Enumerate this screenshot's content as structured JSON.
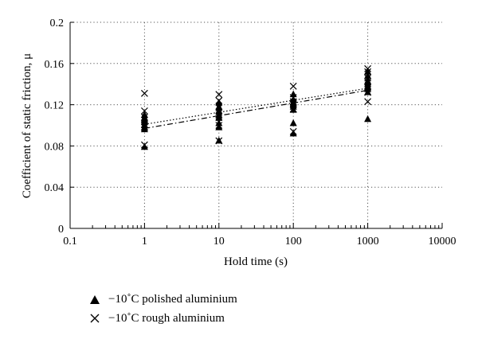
{
  "chart_data": {
    "type": "scatter",
    "xscale": "log",
    "xlabel": "Hold time (s)",
    "ylabel": "Coefficient of static friction, μ",
    "xlim": [
      0.1,
      10000
    ],
    "ylim": [
      0,
      0.2
    ],
    "xticks": [
      "0.1",
      "1",
      "10",
      "100",
      "1000",
      "10000"
    ],
    "yticks": [
      "0",
      "0.04",
      "0.08",
      "0.12",
      "0.16",
      "0.2"
    ],
    "grid": "dotted",
    "legend_position": "below",
    "series": [
      {
        "name": "−10°C polished aluminium",
        "marker": "triangle",
        "color": "#000000",
        "points": [
          [
            1,
            0.079
          ],
          [
            1,
            0.096
          ],
          [
            1,
            0.098
          ],
          [
            1,
            0.1
          ],
          [
            1,
            0.103
          ],
          [
            1,
            0.105
          ],
          [
            1,
            0.107
          ],
          [
            1,
            0.11
          ],
          [
            10,
            0.085
          ],
          [
            10,
            0.098
          ],
          [
            10,
            0.102
          ],
          [
            10,
            0.107
          ],
          [
            10,
            0.11
          ],
          [
            10,
            0.114
          ],
          [
            10,
            0.118
          ],
          [
            10,
            0.122
          ],
          [
            100,
            0.092
          ],
          [
            100,
            0.102
          ],
          [
            100,
            0.115
          ],
          [
            100,
            0.118
          ],
          [
            100,
            0.12
          ],
          [
            100,
            0.122
          ],
          [
            100,
            0.125
          ],
          [
            100,
            0.13
          ],
          [
            1000,
            0.106
          ],
          [
            1000,
            0.132
          ],
          [
            1000,
            0.135
          ],
          [
            1000,
            0.138
          ],
          [
            1000,
            0.14
          ],
          [
            1000,
            0.143
          ],
          [
            1000,
            0.148
          ],
          [
            1000,
            0.152
          ]
        ],
        "trend": {
          "x": [
            1,
            1000
          ],
          "y": [
            0.097,
            0.134
          ],
          "style": "dash-dot"
        }
      },
      {
        "name": "−10°C rough aluminium",
        "marker": "x",
        "color": "#000000",
        "points": [
          [
            1,
            0.081
          ],
          [
            1,
            0.098
          ],
          [
            1,
            0.101
          ],
          [
            1,
            0.105
          ],
          [
            1,
            0.108
          ],
          [
            1,
            0.114
          ],
          [
            1,
            0.131
          ],
          [
            10,
            0.085
          ],
          [
            10,
            0.1
          ],
          [
            10,
            0.109
          ],
          [
            10,
            0.113
          ],
          [
            10,
            0.117
          ],
          [
            10,
            0.124
          ],
          [
            10,
            0.13
          ],
          [
            100,
            0.094
          ],
          [
            100,
            0.116
          ],
          [
            100,
            0.12
          ],
          [
            100,
            0.123
          ],
          [
            100,
            0.127
          ],
          [
            100,
            0.138
          ],
          [
            1000,
            0.123
          ],
          [
            1000,
            0.132
          ],
          [
            1000,
            0.137
          ],
          [
            1000,
            0.142
          ],
          [
            1000,
            0.146
          ],
          [
            1000,
            0.152
          ],
          [
            1000,
            0.155
          ]
        ],
        "trend": {
          "x": [
            1,
            1000
          ],
          "y": [
            0.101,
            0.136
          ],
          "style": "dotted"
        }
      }
    ]
  },
  "legend": {
    "polished_label": "−10˚C polished aluminium",
    "rough_label": "−10˚C rough aluminium"
  }
}
